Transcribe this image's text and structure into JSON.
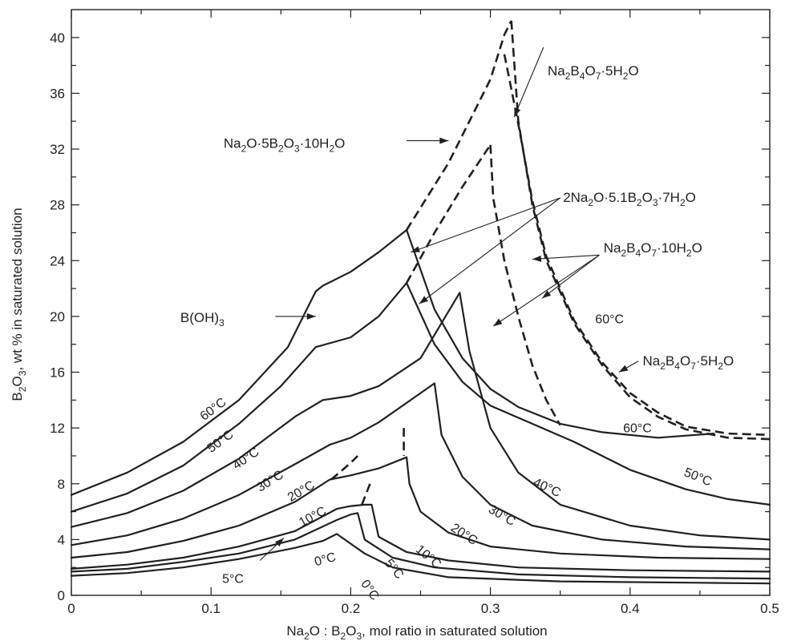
{
  "chart_data": {
    "type": "line",
    "xlabel": "Na2O : B2O3, mol ratio in saturated solution",
    "ylabel": "B2O3, wt % in saturated solution",
    "xlim": [
      0,
      0.5
    ],
    "ylim": [
      0,
      42
    ],
    "x_ticks": [
      {
        "v": 0,
        "label": "0"
      },
      {
        "v": 0.1,
        "label": "0.1"
      },
      {
        "v": 0.2,
        "label": "0.2"
      },
      {
        "v": 0.3,
        "label": "0.3"
      },
      {
        "v": 0.4,
        "label": "0.4"
      },
      {
        "v": 0.5,
        "label": "0.5"
      }
    ],
    "y_ticks": [
      {
        "v": 0,
        "label": "0"
      },
      {
        "v": 4,
        "label": "4"
      },
      {
        "v": 8,
        "label": "8"
      },
      {
        "v": 12,
        "label": "12"
      },
      {
        "v": 16,
        "label": "16"
      },
      {
        "v": 20,
        "label": "20"
      },
      {
        "v": 24,
        "label": "24"
      },
      {
        "v": 28,
        "label": "28"
      },
      {
        "v": 32,
        "label": "32"
      },
      {
        "v": 36,
        "label": "36"
      },
      {
        "v": 40,
        "label": "40"
      }
    ],
    "minor_x": [
      0.05,
      0.15,
      0.25,
      0.35,
      0.45
    ],
    "minor_y": [
      2,
      6,
      10,
      14,
      18,
      22,
      26,
      30,
      34,
      38
    ],
    "grid": false,
    "series": [
      {
        "temp": "60",
        "style": "solid",
        "points": [
          [
            0,
            7.2
          ],
          [
            0.04,
            8.8
          ],
          [
            0.08,
            11
          ],
          [
            0.12,
            14
          ],
          [
            0.155,
            17.8
          ],
          [
            0.175,
            21.8
          ],
          [
            0.18,
            22.2
          ],
          [
            0.2,
            23.2
          ],
          [
            0.22,
            24.6
          ],
          [
            0.24,
            26.2
          ],
          [
            0.26,
            20.5
          ],
          [
            0.28,
            17
          ],
          [
            0.3,
            14.8
          ],
          [
            0.32,
            13.5
          ],
          [
            0.35,
            12.3
          ],
          [
            0.38,
            11.7
          ],
          [
            0.42,
            11.3
          ],
          [
            0.46,
            11.6
          ]
        ]
      },
      {
        "temp": "50",
        "style": "solid",
        "points": [
          [
            0,
            6
          ],
          [
            0.04,
            7.3
          ],
          [
            0.08,
            9.3
          ],
          [
            0.12,
            12.3
          ],
          [
            0.15,
            15
          ],
          [
            0.175,
            17.8
          ],
          [
            0.2,
            18.5
          ],
          [
            0.22,
            20
          ],
          [
            0.24,
            22.4
          ],
          [
            0.26,
            18
          ],
          [
            0.28,
            15.3
          ],
          [
            0.3,
            13.6
          ],
          [
            0.33,
            12.3
          ],
          [
            0.36,
            11
          ],
          [
            0.4,
            9
          ],
          [
            0.44,
            7.6
          ],
          [
            0.47,
            6.9
          ],
          [
            0.5,
            6.5
          ]
        ]
      },
      {
        "temp": "40",
        "style": "solid",
        "points": [
          [
            0,
            4.9
          ],
          [
            0.04,
            5.9
          ],
          [
            0.08,
            7.5
          ],
          [
            0.12,
            9.8
          ],
          [
            0.16,
            12.8
          ],
          [
            0.18,
            14
          ],
          [
            0.2,
            14.3
          ],
          [
            0.22,
            15
          ],
          [
            0.25,
            17
          ],
          [
            0.278,
            21.7
          ],
          [
            0.285,
            17.5
          ],
          [
            0.3,
            12
          ],
          [
            0.32,
            8.8
          ],
          [
            0.35,
            6.5
          ],
          [
            0.4,
            5
          ],
          [
            0.45,
            4.3
          ],
          [
            0.5,
            4
          ]
        ]
      },
      {
        "temp": "30",
        "style": "solid",
        "points": [
          [
            0,
            3.6
          ],
          [
            0.04,
            4.3
          ],
          [
            0.08,
            5.5
          ],
          [
            0.12,
            7.2
          ],
          [
            0.16,
            9.4
          ],
          [
            0.185,
            10.8
          ],
          [
            0.2,
            11.3
          ],
          [
            0.22,
            12.4
          ],
          [
            0.24,
            13.8
          ],
          [
            0.26,
            15.2
          ],
          [
            0.265,
            11.5
          ],
          [
            0.28,
            8.5
          ],
          [
            0.3,
            6.5
          ],
          [
            0.33,
            5
          ],
          [
            0.38,
            4
          ],
          [
            0.44,
            3.5
          ],
          [
            0.5,
            3.3
          ]
        ]
      },
      {
        "temp": "20",
        "style": "solid",
        "points": [
          [
            0,
            2.7
          ],
          [
            0.04,
            3.1
          ],
          [
            0.08,
            3.9
          ],
          [
            0.12,
            5
          ],
          [
            0.16,
            6.7
          ],
          [
            0.185,
            8.3
          ],
          [
            0.2,
            8.6
          ],
          [
            0.22,
            9.1
          ],
          [
            0.24,
            9.9
          ],
          [
            0.242,
            8
          ],
          [
            0.25,
            6
          ],
          [
            0.27,
            4.5
          ],
          [
            0.3,
            3.5
          ],
          [
            0.35,
            3
          ],
          [
            0.42,
            2.7
          ],
          [
            0.5,
            2.6
          ]
        ]
      },
      {
        "temp": "10",
        "style": "solid",
        "points": [
          [
            0,
            1.9
          ],
          [
            0.04,
            2.2
          ],
          [
            0.08,
            2.7
          ],
          [
            0.12,
            3.5
          ],
          [
            0.16,
            4.6
          ],
          [
            0.19,
            6.2
          ],
          [
            0.2,
            6.4
          ],
          [
            0.21,
            6.5
          ],
          [
            0.215,
            6.5
          ],
          [
            0.22,
            4.2
          ],
          [
            0.24,
            3.1
          ],
          [
            0.27,
            2.5
          ],
          [
            0.32,
            2
          ],
          [
            0.4,
            1.8
          ],
          [
            0.5,
            1.7
          ]
        ]
      },
      {
        "temp": "5",
        "style": "solid",
        "points": [
          [
            0,
            1.7
          ],
          [
            0.04,
            1.9
          ],
          [
            0.08,
            2.4
          ],
          [
            0.12,
            3
          ],
          [
            0.16,
            4
          ],
          [
            0.19,
            5.4
          ],
          [
            0.2,
            5.8
          ],
          [
            0.205,
            5.9
          ],
          [
            0.21,
            4
          ],
          [
            0.23,
            2.7
          ],
          [
            0.26,
            2
          ],
          [
            0.32,
            1.5
          ],
          [
            0.4,
            1.3
          ],
          [
            0.5,
            1.2
          ]
        ]
      },
      {
        "temp": "0",
        "style": "solid",
        "points": [
          [
            0,
            1.4
          ],
          [
            0.04,
            1.6
          ],
          [
            0.08,
            2
          ],
          [
            0.12,
            2.6
          ],
          [
            0.16,
            3.4
          ],
          [
            0.18,
            3.9
          ],
          [
            0.19,
            4.4
          ],
          [
            0.21,
            3
          ],
          [
            0.23,
            2
          ],
          [
            0.27,
            1.3
          ],
          [
            0.35,
            1
          ],
          [
            0.45,
            0.9
          ],
          [
            0.5,
            0.85
          ]
        ]
      },
      {
        "temp": "",
        "style": "dashed",
        "points": [
          [
            0.24,
            26.2
          ],
          [
            0.27,
            31
          ],
          [
            0.3,
            37
          ],
          [
            0.31,
            40.2
          ],
          [
            0.315,
            41.2
          ]
        ]
      },
      {
        "temp": "",
        "style": "dashed",
        "points": [
          [
            0.315,
            41.2
          ],
          [
            0.32,
            34
          ],
          [
            0.33,
            28
          ],
          [
            0.34,
            24
          ],
          [
            0.36,
            19.5
          ],
          [
            0.38,
            16.5
          ],
          [
            0.4,
            14.2
          ],
          [
            0.42,
            12.8
          ],
          [
            0.44,
            11.9
          ],
          [
            0.47,
            11.3
          ],
          [
            0.5,
            11.2
          ]
        ]
      },
      {
        "temp": "",
        "style": "dashed",
        "points": [
          [
            0.31,
            38.8
          ],
          [
            0.32,
            33.8
          ],
          [
            0.33,
            28.3
          ],
          [
            0.34,
            24.3
          ],
          [
            0.36,
            19.7
          ],
          [
            0.38,
            16.7
          ],
          [
            0.4,
            14.5
          ],
          [
            0.42,
            13.1
          ],
          [
            0.44,
            12.1
          ],
          [
            0.47,
            11.6
          ],
          [
            0.5,
            11.5
          ]
        ]
      },
      {
        "temp": "",
        "style": "dashed",
        "points": [
          [
            0.24,
            22.4
          ],
          [
            0.26,
            26
          ],
          [
            0.28,
            29.3
          ],
          [
            0.3,
            32.3
          ]
        ]
      },
      {
        "temp": "",
        "style": "dashed",
        "points": [
          [
            0.3,
            32.3
          ],
          [
            0.302,
            28.5
          ],
          [
            0.31,
            24
          ],
          [
            0.32,
            20
          ],
          [
            0.33,
            16.5
          ],
          [
            0.34,
            14
          ],
          [
            0.35,
            12.2
          ]
        ]
      },
      {
        "temp": "",
        "style": "dashed",
        "points": [
          [
            0.238,
            12
          ],
          [
            0.238,
            10
          ]
        ]
      },
      {
        "temp": "",
        "style": "dashed",
        "points": [
          [
            0.186,
            8.3
          ],
          [
            0.2,
            9.5
          ],
          [
            0.205,
            10
          ]
        ]
      },
      {
        "temp": "",
        "style": "dashed",
        "points": [
          [
            0.208,
            6.5
          ],
          [
            0.215,
            8.3
          ]
        ]
      }
    ],
    "temp_labels": [
      {
        "text": "60°C",
        "x": 0.095,
        "y": 12.5,
        "rot": -37
      },
      {
        "text": "50°C",
        "x": 0.1,
        "y": 10.2,
        "rot": -36
      },
      {
        "text": "40°C",
        "x": 0.118,
        "y": 9.0,
        "rot": -34
      },
      {
        "text": "30°C",
        "x": 0.135,
        "y": 7.4,
        "rot": -32
      },
      {
        "text": "20°C",
        "x": 0.157,
        "y": 6.7,
        "rot": -30
      },
      {
        "text": "10°C",
        "x": 0.165,
        "y": 4.9,
        "rot": -28
      },
      {
        "text": "0°C",
        "x": 0.175,
        "y": 2.1,
        "rot": -15
      },
      {
        "text": "5°C",
        "x": 0.108,
        "y": 0.9,
        "rot": 0
      },
      {
        "text": "0°C",
        "x": 0.207,
        "y": 0.85,
        "rot": 55
      },
      {
        "text": "5°C",
        "x": 0.224,
        "y": 2.3,
        "rot": 50
      },
      {
        "text": "10°C",
        "x": 0.246,
        "y": 3.2,
        "rot": 40
      },
      {
        "text": "20°C",
        "x": 0.271,
        "y": 4.7,
        "rot": 33
      },
      {
        "text": "30°C",
        "x": 0.298,
        "y": 6.0,
        "rot": 30
      },
      {
        "text": "40°C",
        "x": 0.33,
        "y": 7.9,
        "rot": 25
      },
      {
        "text": "50°C",
        "x": 0.438,
        "y": 8.6,
        "rot": 22
      },
      {
        "text": "60°C",
        "x": 0.395,
        "y": 11.7,
        "rot": 0
      },
      {
        "text": "60°C",
        "x": 0.375,
        "y": 19.5,
        "rot": 0
      }
    ],
    "phase_labels": [
      {
        "id": "boric",
        "base": "B(OH)",
        "sub": "3",
        "x": 0.078,
        "y": 19.6
      },
      {
        "id": "pentaborate",
        "parts": [
          [
            "Na",
            "n"
          ],
          [
            "2",
            "s"
          ],
          [
            "O·5B",
            "n"
          ],
          [
            "2",
            "s"
          ],
          [
            "O",
            "n"
          ],
          [
            "3",
            "s"
          ],
          [
            "·10H",
            "n"
          ],
          [
            "2",
            "s"
          ],
          [
            "O",
            "n"
          ]
        ],
        "x": 0.109,
        "y": 32.1
      },
      {
        "id": "penta-top",
        "parts": [
          [
            "Na",
            "n"
          ],
          [
            "2",
            "s"
          ],
          [
            "B",
            "n"
          ],
          [
            "4",
            "s"
          ],
          [
            "O",
            "n"
          ],
          [
            "7",
            "s"
          ],
          [
            "·5H",
            "n"
          ],
          [
            "2",
            "s"
          ],
          [
            "O",
            "n"
          ]
        ],
        "x": 0.341,
        "y": 37.3
      },
      {
        "id": "hydrate-2na",
        "parts": [
          [
            "2Na",
            "n"
          ],
          [
            "2",
            "s"
          ],
          [
            "O·5.1B",
            "n"
          ],
          [
            "2",
            "s"
          ],
          [
            "O",
            "n"
          ],
          [
            "3",
            "s"
          ],
          [
            "·7H",
            "n"
          ],
          [
            "2",
            "s"
          ],
          [
            "O",
            "n"
          ]
        ],
        "x": 0.352,
        "y": 28.2
      },
      {
        "id": "decahydrate",
        "parts": [
          [
            "Na",
            "n"
          ],
          [
            "2",
            "s"
          ],
          [
            "B",
            "n"
          ],
          [
            "4",
            "s"
          ],
          [
            "O",
            "n"
          ],
          [
            "7",
            "s"
          ],
          [
            "·10H",
            "n"
          ],
          [
            "2",
            "s"
          ],
          [
            "O",
            "n"
          ]
        ],
        "x": 0.381,
        "y": 24.6
      },
      {
        "id": "penta-right",
        "parts": [
          [
            "Na",
            "n"
          ],
          [
            "2",
            "s"
          ],
          [
            "B",
            "n"
          ],
          [
            "4",
            "s"
          ],
          [
            "O",
            "n"
          ],
          [
            "7",
            "s"
          ],
          [
            "·5H",
            "n"
          ],
          [
            "2",
            "s"
          ],
          [
            "O",
            "n"
          ]
        ],
        "x": 0.409,
        "y": 16.5
      }
    ],
    "arrows": [
      {
        "from": [
          0.146,
          20
        ],
        "to": [
          0.175,
          20
        ]
      },
      {
        "from": [
          0.24,
          32.6
        ],
        "to": [
          0.27,
          32.6
        ]
      },
      {
        "from": [
          0.338,
          39.3
        ],
        "to": [
          0.317,
          34.3
        ]
      },
      {
        "from": [
          0.35,
          28.5
        ],
        "to": [
          0.243,
          24.6
        ]
      },
      {
        "from": [
          0.35,
          28.5
        ],
        "to": [
          0.249,
          20.9
        ]
      },
      {
        "from": [
          0.378,
          24.4
        ],
        "to": [
          0.33,
          24.1
        ]
      },
      {
        "from": [
          0.378,
          24.4
        ],
        "to": [
          0.337,
          21.3
        ]
      },
      {
        "from": [
          0.378,
          24.4
        ],
        "to": [
          0.302,
          19.3
        ]
      },
      {
        "from": [
          0.406,
          16.8
        ],
        "to": [
          0.392,
          16.0
        ]
      },
      {
        "from": [
          0.135,
          2.5
        ],
        "to": [
          0.152,
          4.1
        ]
      }
    ]
  }
}
